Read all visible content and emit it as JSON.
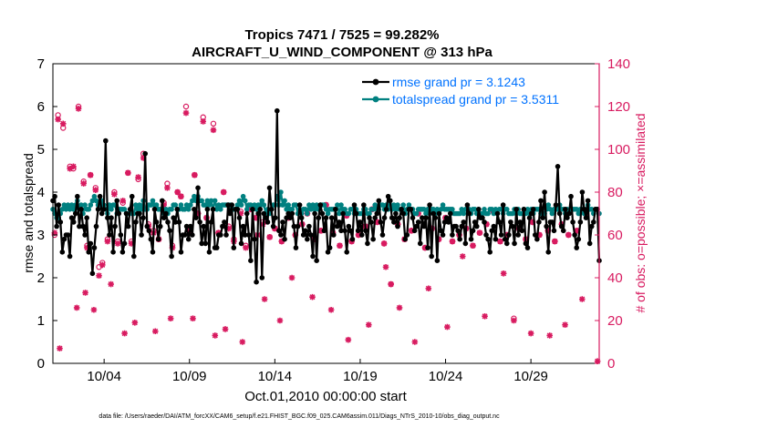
{
  "chart_data": {
    "type": "line",
    "title_line1": "Tropics 7471 / 7525 = 99.282%",
    "title_line2": "AIRCRAFT_U_WIND_COMPONENT @ 313 hPa",
    "xlabel": "Oct.01,2010 00:00:00 start",
    "ylabel_left": "rmse and totalspread",
    "ylabel_right": "# of obs: o=possible; ×=assimilated",
    "ylim_left": [
      0,
      7
    ],
    "ylim_right": [
      0,
      140
    ],
    "xlim": [
      1,
      33
    ],
    "x_ticks": [
      4,
      9,
      14,
      19,
      24,
      29
    ],
    "x_tick_labels": [
      "10/04",
      "10/09",
      "10/14",
      "10/19",
      "10/24",
      "10/29"
    ],
    "y_ticks_left": [
      "0",
      "1",
      "2",
      "3",
      "4",
      "5",
      "6",
      "7"
    ],
    "y_ticks_right": [
      "0",
      "20",
      "40",
      "60",
      "80",
      "100",
      "120",
      "140"
    ],
    "colors": {
      "rmse": "#000000",
      "spread": "#008080",
      "obs": "#d81b60",
      "legend_text": "#0072ff"
    },
    "series": [
      {
        "name": "rmse grand pr = 3.1243",
        "key": "rmse",
        "values": [
          3.8,
          3.9,
          3.2,
          3.7,
          3.3,
          2.6,
          2.9,
          3.0,
          3.0,
          2.5,
          3.4,
          3.3,
          3.5,
          3.9,
          3.2,
          3.6,
          3.2,
          3.0,
          3.4,
          2.6,
          2.8,
          2.1,
          2.7,
          3.2,
          3.6,
          3.9,
          3.5,
          3.6,
          5.2,
          3.4,
          3.0,
          3.4,
          2.6,
          3.2,
          3.8,
          3.5,
          3.0,
          2.6,
          2.8,
          3.5,
          3.2,
          3.6,
          3.9,
          2.5,
          3.3,
          3.5,
          3.5,
          3.0,
          3.4,
          4.9,
          3.2,
          3.1,
          2.9,
          2.6,
          3.6,
          3.3,
          2.9,
          3.2,
          3.8,
          3.4,
          3.5,
          3.3,
          3.1,
          2.5,
          3.4,
          3.3,
          3.6,
          3.3,
          2.6,
          3.0,
          3.0,
          3.2,
          2.9,
          3.2,
          3.0,
          3.6,
          3.4,
          4.1,
          3.3,
          2.8,
          3.2,
          2.8,
          3.6,
          2.6,
          3.3,
          3.6,
          2.7,
          2.7,
          3.0,
          3.0,
          3.2,
          3.3,
          3.0,
          3.7,
          3.5,
          3.7,
          2.7,
          3.6,
          3.6,
          3.4,
          2.8,
          3.2,
          3.0,
          3.5,
          3.0,
          2.4,
          3.6,
          2.9,
          1.9,
          3.5,
          3.6,
          2.0,
          3.5,
          3.4,
          3.3,
          4.1,
          3.6,
          3.2,
          3.4,
          5.9,
          3.1,
          3.0,
          3.3,
          2.9,
          3.4,
          3.5,
          3.4,
          3.5,
          3.2,
          2.7,
          3.2,
          3.7,
          3.4,
          3.0,
          3.1,
          2.9,
          3.2,
          3.0,
          2.5,
          3.5,
          2.4,
          3.4,
          3.7,
          3.5,
          3.1,
          3.4,
          2.6,
          2.7,
          3.4,
          3.0,
          3.6,
          3.2,
          3.3,
          3.1,
          3.5,
          3.1,
          2.6,
          3.2,
          3.1,
          2.9,
          3.7,
          3.5,
          3.1,
          3.3,
          3.0,
          3.7,
          3.1,
          2.8,
          3.4,
          3.3,
          2.9,
          3.4,
          3.5,
          3.8,
          3.3,
          3.0,
          3.4,
          3.6,
          3.9,
          3.8,
          3.4,
          3.3,
          3.5,
          3.2,
          3.4,
          3.6,
          3.5,
          2.9,
          3.0,
          3.6,
          3.6,
          3.4,
          3.1,
          3.2,
          3.3,
          2.8,
          3.4,
          3.2,
          3.4,
          2.7,
          3.7,
          2.5,
          3.5,
          3.4,
          2.4,
          3.5,
          3.1,
          3.0,
          3.3,
          3.4,
          3.3,
          3.5,
          3.0,
          3.2,
          3.2,
          3.1,
          2.9,
          3.2,
          3.3,
          2.8,
          3.7,
          3.5,
          2.9,
          3.1,
          3.3,
          3.2,
          3.6,
          3.4,
          3.4,
          3.3,
          3.0,
          2.9,
          2.6,
          3.1,
          3.2,
          2.9,
          3.5,
          3.3,
          3.0,
          3.7,
          2.9,
          2.8,
          3.0,
          3.3,
          3.2,
          2.8,
          3.6,
          3.0,
          3.3,
          3.1,
          3.6,
          2.8,
          2.7,
          3.4,
          3.5,
          3.6,
          3.0,
          2.9,
          3.3,
          3.8,
          3.4,
          4.0,
          3.2,
          2.6,
          3.3,
          3.3,
          3.1,
          3.7,
          4.6,
          3.5,
          3.2,
          3.1,
          3.6,
          3.4,
          3.5,
          3.9,
          3.3,
          3.0,
          2.7,
          2.9,
          3.3,
          4.0,
          3.6,
          3.4,
          3.8,
          2.8,
          3.2,
          3.3,
          3.6,
          3.6,
          2.4
        ]
      },
      {
        "name": "totalspread grand pr = 3.5311",
        "key": "spread",
        "values": [
          3.6,
          3.5,
          3.4,
          3.4,
          3.5,
          3.6,
          3.7,
          3.6,
          3.7,
          3.6,
          3.7,
          3.6,
          3.7,
          3.8,
          3.6,
          3.7,
          3.5,
          3.7,
          3.6,
          3.6,
          3.7,
          3.8,
          3.9,
          3.8,
          3.7,
          3.7,
          3.8,
          3.7,
          3.6,
          3.5,
          3.7,
          3.6,
          3.7,
          3.7,
          3.5,
          3.6,
          3.6,
          3.6,
          3.6,
          3.5,
          3.5,
          3.6,
          3.5,
          3.5,
          3.7,
          3.6,
          3.7,
          3.6,
          3.8,
          3.6,
          3.6,
          3.7,
          3.7,
          3.8,
          3.7,
          3.7,
          3.6,
          3.6,
          3.6,
          3.5,
          3.6,
          3.5,
          3.6,
          3.6,
          3.7,
          3.7,
          3.6,
          3.6,
          3.7,
          3.6,
          3.6,
          3.7,
          3.6,
          3.7,
          3.8,
          3.9,
          3.8,
          3.9,
          3.8,
          3.8,
          3.7,
          3.7,
          3.8,
          3.7,
          3.8,
          3.6,
          3.8,
          3.6,
          3.7,
          3.6,
          3.7,
          3.7,
          3.7,
          3.7,
          3.7,
          3.6,
          3.6,
          3.6,
          3.7,
          3.8,
          3.7,
          3.9,
          3.8,
          3.6,
          3.7,
          3.7,
          3.6,
          3.7,
          3.6,
          3.7,
          3.7,
          3.8,
          3.7,
          3.5,
          3.6,
          3.5,
          3.6,
          3.7,
          3.7,
          3.9,
          3.7,
          4.0,
          3.7,
          3.8,
          3.6,
          3.7,
          3.6,
          3.6,
          3.7,
          3.7,
          3.5,
          3.6,
          3.5,
          3.6,
          3.6,
          3.5,
          3.7,
          3.6,
          3.7,
          3.6,
          3.7,
          3.6,
          3.7,
          3.7,
          3.7,
          3.6,
          3.5,
          3.6,
          3.6,
          3.6,
          3.6,
          3.7,
          3.5,
          3.7,
          3.6,
          3.6,
          3.5,
          3.5,
          3.6,
          3.6,
          3.5,
          3.6,
          3.5,
          3.5,
          3.5,
          3.6,
          3.6,
          3.5,
          3.5,
          3.6,
          3.6,
          3.7,
          3.6,
          3.6,
          3.7,
          3.7,
          3.6,
          3.7,
          3.6,
          3.8,
          3.6,
          3.7,
          3.6,
          3.7,
          3.6,
          3.6,
          3.7,
          3.5,
          3.6,
          3.7,
          3.6,
          3.6,
          3.5,
          3.5,
          3.6,
          3.6,
          3.6,
          3.6,
          3.5,
          3.6,
          3.5,
          3.6,
          3.6,
          3.5,
          3.6,
          3.5,
          3.6,
          3.7,
          3.6,
          3.6,
          3.6,
          3.6,
          3.6,
          3.5,
          3.5,
          3.5,
          3.5,
          3.6,
          3.5,
          3.6,
          3.6,
          3.6,
          3.5,
          3.6,
          3.6,
          3.5,
          3.6,
          3.5,
          3.5,
          3.6,
          3.5,
          3.5,
          3.6,
          3.6,
          3.5,
          3.6,
          3.5,
          3.6,
          3.6,
          3.5,
          3.6,
          3.6,
          3.5,
          3.5,
          3.5,
          3.6,
          3.5,
          3.6,
          3.5,
          3.5,
          3.6,
          3.5,
          3.6,
          3.5,
          3.6,
          3.5,
          3.6,
          3.6,
          3.6,
          3.5,
          3.5,
          3.5,
          3.6,
          3.7,
          3.6,
          3.5,
          3.6,
          3.6,
          3.6,
          3.7,
          3.6,
          3.6,
          3.5,
          3.6,
          3.5,
          3.6,
          3.6,
          3.6,
          3.6,
          3.5,
          3.6,
          3.6,
          3.5,
          3.6,
          3.7,
          3.6,
          3.6,
          3.5,
          3.6,
          3.6,
          3.5
        ]
      }
    ],
    "obs_possible": [
      [
        1.1,
        60
      ],
      [
        1.3,
        116
      ],
      [
        1.6,
        110
      ],
      [
        2.0,
        92
      ],
      [
        2.2,
        91
      ],
      [
        2.5,
        120
      ],
      [
        2.8,
        85
      ],
      [
        3.0,
        55
      ],
      [
        3.2,
        88
      ],
      [
        3.5,
        82
      ],
      [
        3.7,
        45
      ],
      [
        3.9,
        47
      ],
      [
        4.2,
        58
      ],
      [
        4.6,
        80
      ],
      [
        4.8,
        57
      ],
      [
        5.1,
        75
      ],
      [
        5.4,
        89
      ],
      [
        5.6,
        57
      ],
      [
        6.0,
        86
      ],
      [
        6.3,
        98
      ],
      [
        6.6,
        65
      ],
      [
        6.9,
        62
      ],
      [
        7.2,
        58
      ],
      [
        7.5,
        75
      ],
      [
        7.7,
        84
      ],
      [
        8.0,
        55
      ],
      [
        8.3,
        80
      ],
      [
        8.5,
        78
      ],
      [
        8.8,
        120
      ],
      [
        9.0,
        62
      ],
      [
        9.3,
        88
      ],
      [
        9.5,
        70
      ],
      [
        9.8,
        115
      ],
      [
        10.0,
        68
      ],
      [
        10.4,
        112
      ],
      [
        10.7,
        61
      ],
      [
        11.0,
        80
      ],
      [
        11.3,
        64
      ],
      [
        11.6,
        58
      ],
      [
        12.0,
        71
      ],
      [
        12.3,
        55
      ],
      [
        12.6,
        72
      ],
      [
        12.9,
        68
      ],
      [
        13.3,
        66
      ],
      [
        13.7,
        59
      ],
      [
        14.0,
        63
      ],
      [
        14.4,
        57
      ],
      [
        14.8,
        68
      ],
      [
        15.2,
        60
      ],
      [
        15.6,
        65
      ],
      [
        15.9,
        70
      ],
      [
        16.3,
        58
      ],
      [
        16.7,
        62
      ],
      [
        17.0,
        74
      ],
      [
        17.4,
        61
      ],
      [
        17.8,
        55
      ],
      [
        18.2,
        69
      ],
      [
        18.5,
        57
      ],
      [
        18.9,
        60
      ],
      [
        19.3,
        64
      ],
      [
        19.7,
        72
      ],
      [
        20.0,
        66
      ],
      [
        20.4,
        56
      ],
      [
        20.8,
        37
      ],
      [
        21.2,
        65
      ],
      [
        21.6,
        58
      ],
      [
        22.0,
        62
      ],
      [
        22.4,
        70
      ],
      [
        22.8,
        54
      ],
      [
        23.2,
        63
      ],
      [
        23.6,
        58
      ],
      [
        24.0,
        68
      ],
      [
        24.4,
        57
      ],
      [
        24.8,
        60
      ],
      [
        25.2,
        63
      ],
      [
        25.6,
        55
      ],
      [
        26.0,
        61
      ],
      [
        26.4,
        65
      ],
      [
        26.8,
        71
      ],
      [
        27.2,
        57
      ],
      [
        27.6,
        60
      ],
      [
        28.0,
        21
      ],
      [
        28.3,
        63
      ],
      [
        28.7,
        58
      ],
      [
        29.1,
        66
      ],
      [
        29.5,
        60
      ],
      [
        30.0,
        62
      ],
      [
        30.4,
        57
      ],
      [
        30.8,
        65
      ],
      [
        31.2,
        60
      ],
      [
        31.7,
        62
      ],
      [
        32.2,
        70
      ]
    ],
    "obs_assimilated": [
      [
        1.1,
        61
      ],
      [
        1.3,
        114
      ],
      [
        1.4,
        7
      ],
      [
        1.6,
        112
      ],
      [
        2.0,
        91
      ],
      [
        2.2,
        92
      ],
      [
        2.4,
        26
      ],
      [
        2.5,
        119
      ],
      [
        2.8,
        84
      ],
      [
        2.9,
        33
      ],
      [
        3.0,
        54
      ],
      [
        3.2,
        88
      ],
      [
        3.4,
        25
      ],
      [
        3.5,
        81
      ],
      [
        3.7,
        41
      ],
      [
        3.9,
        46
      ],
      [
        4.2,
        57
      ],
      [
        4.4,
        37
      ],
      [
        4.6,
        79
      ],
      [
        4.8,
        56
      ],
      [
        5.1,
        76
      ],
      [
        5.2,
        14
      ],
      [
        5.4,
        89
      ],
      [
        5.6,
        56
      ],
      [
        5.8,
        19
      ],
      [
        6.0,
        87
      ],
      [
        6.3,
        96
      ],
      [
        6.6,
        64
      ],
      [
        6.9,
        61
      ],
      [
        7.0,
        15
      ],
      [
        7.2,
        58
      ],
      [
        7.5,
        74
      ],
      [
        7.7,
        82
      ],
      [
        7.9,
        21
      ],
      [
        8.0,
        54
      ],
      [
        8.3,
        80
      ],
      [
        8.5,
        78
      ],
      [
        8.8,
        117
      ],
      [
        9.0,
        62
      ],
      [
        9.2,
        21
      ],
      [
        9.3,
        88
      ],
      [
        9.5,
        70
      ],
      [
        9.8,
        113
      ],
      [
        10.0,
        68
      ],
      [
        10.4,
        109
      ],
      [
        10.5,
        13
      ],
      [
        10.7,
        61
      ],
      [
        11.0,
        80
      ],
      [
        11.1,
        16
      ],
      [
        11.3,
        63
      ],
      [
        11.6,
        57
      ],
      [
        12.0,
        70
      ],
      [
        12.1,
        10
      ],
      [
        12.3,
        54
      ],
      [
        12.6,
        72
      ],
      [
        12.9,
        68
      ],
      [
        13.0,
        60
      ],
      [
        13.3,
        65
      ],
      [
        13.4,
        30
      ],
      [
        13.7,
        59
      ],
      [
        14.0,
        63
      ],
      [
        14.3,
        20
      ],
      [
        14.4,
        57
      ],
      [
        14.8,
        68
      ],
      [
        15.0,
        40
      ],
      [
        15.2,
        60
      ],
      [
        15.6,
        65
      ],
      [
        15.9,
        70
      ],
      [
        16.2,
        31
      ],
      [
        16.3,
        58
      ],
      [
        16.7,
        62
      ],
      [
        17.0,
        74
      ],
      [
        17.3,
        25
      ],
      [
        17.4,
        61
      ],
      [
        17.8,
        55
      ],
      [
        18.2,
        69
      ],
      [
        18.3,
        11
      ],
      [
        18.5,
        57
      ],
      [
        18.9,
        60
      ],
      [
        19.3,
        64
      ],
      [
        19.5,
        18
      ],
      [
        19.7,
        72
      ],
      [
        20.0,
        66
      ],
      [
        20.4,
        56
      ],
      [
        20.5,
        45
      ],
      [
        20.8,
        37
      ],
      [
        21.2,
        65
      ],
      [
        21.3,
        26
      ],
      [
        21.6,
        58
      ],
      [
        22.0,
        62
      ],
      [
        22.2,
        10
      ],
      [
        22.4,
        70
      ],
      [
        22.8,
        54
      ],
      [
        23.0,
        35
      ],
      [
        23.2,
        63
      ],
      [
        23.6,
        58
      ],
      [
        24.0,
        68
      ],
      [
        24.1,
        17
      ],
      [
        24.4,
        57
      ],
      [
        24.8,
        60
      ],
      [
        25.0,
        50
      ],
      [
        25.2,
        63
      ],
      [
        25.6,
        55
      ],
      [
        26.0,
        61
      ],
      [
        26.3,
        22
      ],
      [
        26.4,
        65
      ],
      [
        26.8,
        71
      ],
      [
        27.2,
        57
      ],
      [
        27.4,
        42
      ],
      [
        27.6,
        60
      ],
      [
        28.0,
        20
      ],
      [
        28.3,
        63
      ],
      [
        28.7,
        58
      ],
      [
        29.0,
        14
      ],
      [
        29.1,
        66
      ],
      [
        29.5,
        60
      ],
      [
        30.0,
        62
      ],
      [
        30.1,
        13
      ],
      [
        30.4,
        57
      ],
      [
        30.8,
        65
      ],
      [
        31.0,
        18
      ],
      [
        31.2,
        60
      ],
      [
        31.7,
        62
      ],
      [
        32.0,
        30
      ],
      [
        32.2,
        70
      ],
      [
        32.9,
        1
      ]
    ],
    "footer": "data file: /Users/raeder/DAI/ATM_forcXX/CAM6_setup/f.e21.FHIST_BGC.f09_025.CAM6assim.011/Diags_NTrS_2010-10/obs_diag_output.nc"
  }
}
